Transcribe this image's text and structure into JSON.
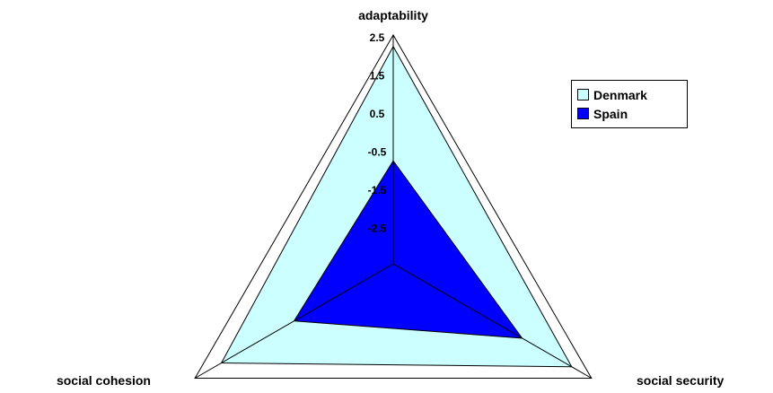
{
  "chart_data": {
    "type": "radar",
    "axes": [
      "adaptability",
      "social security",
      "social cohesion"
    ],
    "tick_labels": [
      "2.5",
      "1.5",
      "0.5",
      "-0.5",
      "-1.5",
      "-2.5"
    ],
    "range": [
      -3.5,
      2.5
    ],
    "series": [
      {
        "name": "Denmark",
        "values": [
          2.2,
          1.9,
          1.7
        ],
        "color": "#ccffff"
      },
      {
        "name": "Spain",
        "values": [
          -0.8,
          0.4,
          -0.5
        ],
        "color": "#0000ff"
      }
    ],
    "gridlines": true,
    "legend_position": "right"
  }
}
